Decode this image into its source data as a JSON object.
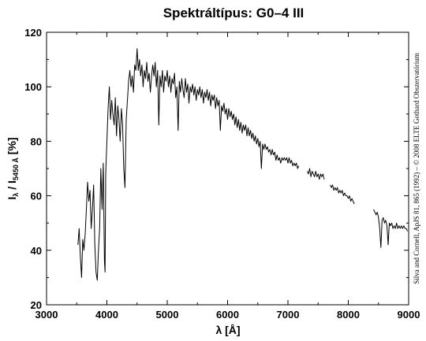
{
  "chart_data": {
    "type": "line",
    "title": "Spektráltípus: G0–4 III",
    "xlabel": "λ [Å]",
    "ylabel_main": "I",
    "ylabel_sub1": "λ",
    "ylabel_mid": " / I",
    "ylabel_sub2": "5450 Å",
    "ylabel_end": " [%]",
    "credit": "Silva and Cornell, ApJS 81, 865 (1992) – © 2008 ELTE Gothard Obszervatórium",
    "xlim": [
      3000,
      9000
    ],
    "ylim": [
      20,
      120
    ],
    "xticks": [
      3000,
      4000,
      5000,
      6000,
      7000,
      8000,
      9000
    ],
    "yticks": [
      20,
      40,
      60,
      80,
      100,
      120
    ],
    "grid": false,
    "series": [
      {
        "segments": [
          [
            [
              3520,
              42
            ],
            [
              3540,
              48
            ],
            [
              3560,
              38
            ],
            [
              3580,
              30
            ],
            [
              3600,
              44
            ],
            [
              3620,
              40
            ],
            [
              3640,
              46
            ],
            [
              3660,
              55
            ],
            [
              3680,
              65
            ],
            [
              3700,
              58
            ],
            [
              3720,
              62
            ],
            [
              3740,
              48
            ],
            [
              3760,
              55
            ],
            [
              3780,
              64
            ],
            [
              3800,
              42
            ],
            [
              3820,
              32
            ],
            [
              3840,
              29
            ],
            [
              3860,
              40
            ],
            [
              3880,
              48
            ],
            [
              3900,
              70
            ],
            [
              3920,
              55
            ],
            [
              3940,
              72
            ],
            [
              3960,
              36
            ],
            [
              3970,
              32
            ],
            [
              3980,
              68
            ],
            [
              4000,
              80
            ],
            [
              4020,
              92
            ],
            [
              4040,
              100
            ],
            [
              4060,
              88
            ],
            [
              4080,
              95
            ],
            [
              4100,
              90
            ],
            [
              4120,
              86
            ],
            [
              4140,
              96
            ],
            [
              4160,
              82
            ],
            [
              4180,
              93
            ],
            [
              4200,
              88
            ],
            [
              4220,
              80
            ],
            [
              4240,
              92
            ],
            [
              4260,
              86
            ],
            [
              4280,
              70
            ],
            [
              4300,
              63
            ],
            [
              4320,
              88
            ],
            [
              4340,
              95
            ],
            [
              4360,
              102
            ],
            [
              4380,
              106
            ],
            [
              4400,
              100
            ],
            [
              4420,
              104
            ],
            [
              4440,
              98
            ],
            [
              4460,
              108
            ],
            [
              4480,
              106
            ],
            [
              4500,
              114
            ],
            [
              4520,
              106
            ],
            [
              4540,
              110
            ],
            [
              4560,
              104
            ],
            [
              4580,
              108
            ],
            [
              4600,
              100
            ],
            [
              4620,
              106
            ],
            [
              4640,
              103
            ],
            [
              4660,
              109
            ],
            [
              4680,
              102
            ],
            [
              4700,
              105
            ],
            [
              4720,
              98
            ],
            [
              4740,
              104
            ],
            [
              4760,
              108
            ],
            [
              4780,
              104
            ],
            [
              4800,
              109
            ],
            [
              4820,
              100
            ],
            [
              4840,
              106
            ],
            [
              4860,
              86
            ],
            [
              4880,
              104
            ],
            [
              4900,
              100
            ],
            [
              4920,
              106
            ],
            [
              4940,
              98
            ],
            [
              4960,
              104
            ],
            [
              4980,
              102
            ],
            [
              5000,
              106
            ],
            [
              5020,
              100
            ],
            [
              5040,
              104
            ],
            [
              5060,
              98
            ],
            [
              5080,
              103
            ],
            [
              5100,
              101
            ],
            [
              5120,
              105
            ],
            [
              5140,
              96
            ],
            [
              5160,
              100
            ],
            [
              5180,
              84
            ],
            [
              5200,
              102
            ],
            [
              5220,
              98
            ],
            [
              5240,
              103
            ],
            [
              5260,
              99
            ],
            [
              5280,
              96
            ],
            [
              5300,
              103
            ],
            [
              5320,
              98
            ],
            [
              5340,
              101
            ],
            [
              5360,
              94
            ],
            [
              5380,
              100
            ],
            [
              5400,
              98
            ],
            [
              5420,
              101
            ],
            [
              5440,
              97
            ],
            [
              5460,
              100
            ],
            [
              5480,
              95
            ],
            [
              5500,
              99
            ],
            [
              5520,
              97
            ],
            [
              5540,
              100
            ],
            [
              5560,
              96
            ],
            [
              5580,
              99
            ],
            [
              5600,
              94
            ],
            [
              5620,
              98
            ],
            [
              5640,
              96
            ],
            [
              5660,
              99
            ],
            [
              5680,
              95
            ],
            [
              5700,
              98
            ],
            [
              5720,
              93
            ],
            [
              5740,
              97
            ],
            [
              5760,
              95
            ],
            [
              5780,
              97
            ],
            [
              5800,
              92
            ],
            [
              5820,
              96
            ],
            [
              5840,
              93
            ],
            [
              5860,
              95
            ],
            [
              5880,
              84
            ],
            [
              5900,
              93
            ],
            [
              5920,
              91
            ],
            [
              5940,
              94
            ],
            [
              5960,
              90
            ],
            [
              5980,
              92
            ],
            [
              6000,
              88
            ],
            [
              6020,
              92
            ],
            [
              6040,
              89
            ],
            [
              6060,
              91
            ],
            [
              6080,
              88
            ],
            [
              6100,
              90
            ],
            [
              6120,
              86
            ],
            [
              6140,
              89
            ],
            [
              6160,
              85
            ],
            [
              6180,
              88
            ],
            [
              6200,
              84
            ],
            [
              6220,
              87
            ],
            [
              6240,
              83
            ],
            [
              6260,
              86
            ],
            [
              6280,
              84
            ],
            [
              6300,
              86
            ],
            [
              6320,
              82
            ],
            [
              6340,
              85
            ],
            [
              6360,
              82
            ],
            [
              6380,
              84
            ],
            [
              6400,
              81
            ],
            [
              6420,
              83
            ],
            [
              6440,
              80
            ],
            [
              6460,
              82
            ],
            [
              6480,
              79
            ],
            [
              6500,
              81
            ],
            [
              6520,
              78
            ],
            [
              6540,
              80
            ],
            [
              6560,
              70
            ],
            [
              6580,
              79
            ],
            [
              6600,
              77
            ],
            [
              6620,
              79
            ],
            [
              6640,
              77
            ],
            [
              6660,
              78
            ],
            [
              6680,
              76
            ],
            [
              6700,
              77
            ],
            [
              6720,
              75
            ],
            [
              6740,
              77
            ],
            [
              6760,
              75
            ],
            [
              6780,
              76
            ],
            [
              6800,
              73
            ],
            [
              6820,
              75
            ],
            [
              6840,
              73
            ],
            [
              6860,
              74
            ],
            [
              6880,
              72
            ],
            [
              6900,
              74
            ],
            [
              6920,
              73
            ],
            [
              6940,
              74
            ],
            [
              6960,
              73
            ],
            [
              6980,
              74
            ],
            [
              7000,
              72
            ],
            [
              7020,
              74
            ],
            [
              7040,
              72
            ],
            [
              7060,
              73
            ],
            [
              7080,
              71
            ],
            [
              7100,
              72
            ],
            [
              7120,
              71
            ],
            [
              7140,
              72
            ],
            [
              7160,
              70
            ],
            [
              7180,
              71
            ]
          ],
          [
            [
              7320,
              69
            ],
            [
              7340,
              68
            ],
            [
              7360,
              70
            ],
            [
              7380,
              67
            ],
            [
              7400,
              69
            ],
            [
              7420,
              68
            ],
            [
              7440,
              67
            ],
            [
              7460,
              69
            ],
            [
              7480,
              67
            ],
            [
              7500,
              68
            ],
            [
              7520,
              66
            ],
            [
              7540,
              68
            ],
            [
              7560,
              67
            ],
            [
              7580,
              68
            ],
            [
              7600,
              66
            ]
          ],
          [
            [
              7700,
              64
            ],
            [
              7720,
              63
            ],
            [
              7740,
              64
            ],
            [
              7760,
              62
            ],
            [
              7780,
              63
            ],
            [
              7800,
              62
            ],
            [
              7820,
              63
            ],
            [
              7840,
              61
            ],
            [
              7860,
              62
            ],
            [
              7880,
              61
            ],
            [
              7900,
              62
            ],
            [
              7920,
              60
            ],
            [
              7940,
              61
            ],
            [
              7960,
              60
            ],
            [
              7980,
              60
            ],
            [
              8000,
              59
            ],
            [
              8020,
              60
            ],
            [
              8040,
              58
            ],
            [
              8060,
              59
            ],
            [
              8080,
              58
            ],
            [
              8100,
              57
            ]
          ],
          [
            [
              8420,
              55
            ],
            [
              8440,
              54
            ],
            [
              8460,
              53
            ],
            [
              8480,
              54
            ],
            [
              8500,
              52
            ],
            [
              8520,
              48
            ],
            [
              8540,
              41
            ],
            [
              8560,
              51
            ],
            [
              8580,
              52
            ],
            [
              8600,
              50
            ],
            [
              8620,
              51
            ],
            [
              8640,
              49
            ],
            [
              8660,
              42
            ],
            [
              8680,
              50
            ],
            [
              8700,
              49
            ],
            [
              8720,
              50
            ],
            [
              8740,
              48
            ],
            [
              8760,
              49
            ],
            [
              8780,
              48
            ],
            [
              8800,
              50
            ],
            [
              8820,
              48
            ],
            [
              8840,
              49
            ],
            [
              8860,
              48
            ],
            [
              8880,
              49
            ],
            [
              8900,
              48
            ],
            [
              8920,
              49
            ],
            [
              8940,
              48
            ],
            [
              8960,
              48
            ],
            [
              8980,
              47
            ]
          ]
        ]
      }
    ]
  }
}
